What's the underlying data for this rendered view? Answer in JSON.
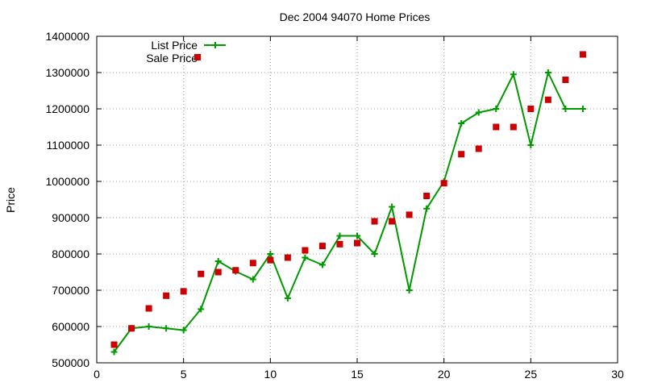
{
  "colors": {
    "list_series": "#009900",
    "sale_series": "#cc0000",
    "grid": "#a0a0a0",
    "axis": "#000000",
    "background": "#ffffff"
  },
  "chart_data": {
    "type": "line",
    "title": "Dec 2004 94070 Home Prices",
    "xlabel": "",
    "ylabel": "Price",
    "xlim": [
      0,
      30
    ],
    "ylim": [
      500000,
      1400000
    ],
    "grid": true,
    "legend_position": "top-left",
    "x_ticks": [
      "0",
      "5",
      "10",
      "15",
      "20",
      "25",
      "30"
    ],
    "y_ticks": [
      "500000",
      "600000",
      "700000",
      "800000",
      "900000",
      "1000000",
      "1100000",
      "1200000",
      "1300000",
      "1400000"
    ],
    "series": [
      {
        "name": "List Price",
        "style": "line+plus",
        "x": [
          1,
          2,
          3,
          4,
          5,
          6,
          7,
          8,
          9,
          10,
          11,
          12,
          13,
          14,
          15,
          16,
          17,
          18,
          19,
          20,
          21,
          22,
          23,
          24,
          25,
          26,
          27,
          28
        ],
        "y": [
          530000,
          595000,
          600000,
          595000,
          590000,
          648000,
          780000,
          752000,
          730000,
          800000,
          678000,
          790000,
          770000,
          850000,
          850000,
          800000,
          930000,
          700000,
          925000,
          1000000,
          1160000,
          1190000,
          1200000,
          1295000,
          1100000,
          1300000,
          1200000,
          1200000
        ]
      },
      {
        "name": "Sale Price",
        "style": "square-markers",
        "x": [
          1,
          2,
          3,
          4,
          5,
          6,
          7,
          8,
          9,
          10,
          11,
          12,
          13,
          14,
          15,
          16,
          17,
          18,
          19,
          20,
          21,
          22,
          23,
          24,
          25,
          26,
          27,
          28
        ],
        "y": [
          550000,
          595000,
          650000,
          685000,
          697000,
          745000,
          750000,
          755000,
          775000,
          783000,
          790000,
          810000,
          822000,
          827000,
          830000,
          890000,
          890000,
          908000,
          960000,
          995000,
          1075000,
          1090000,
          1150000,
          1150000,
          1200000,
          1225000,
          1280000,
          1350000
        ]
      }
    ]
  }
}
